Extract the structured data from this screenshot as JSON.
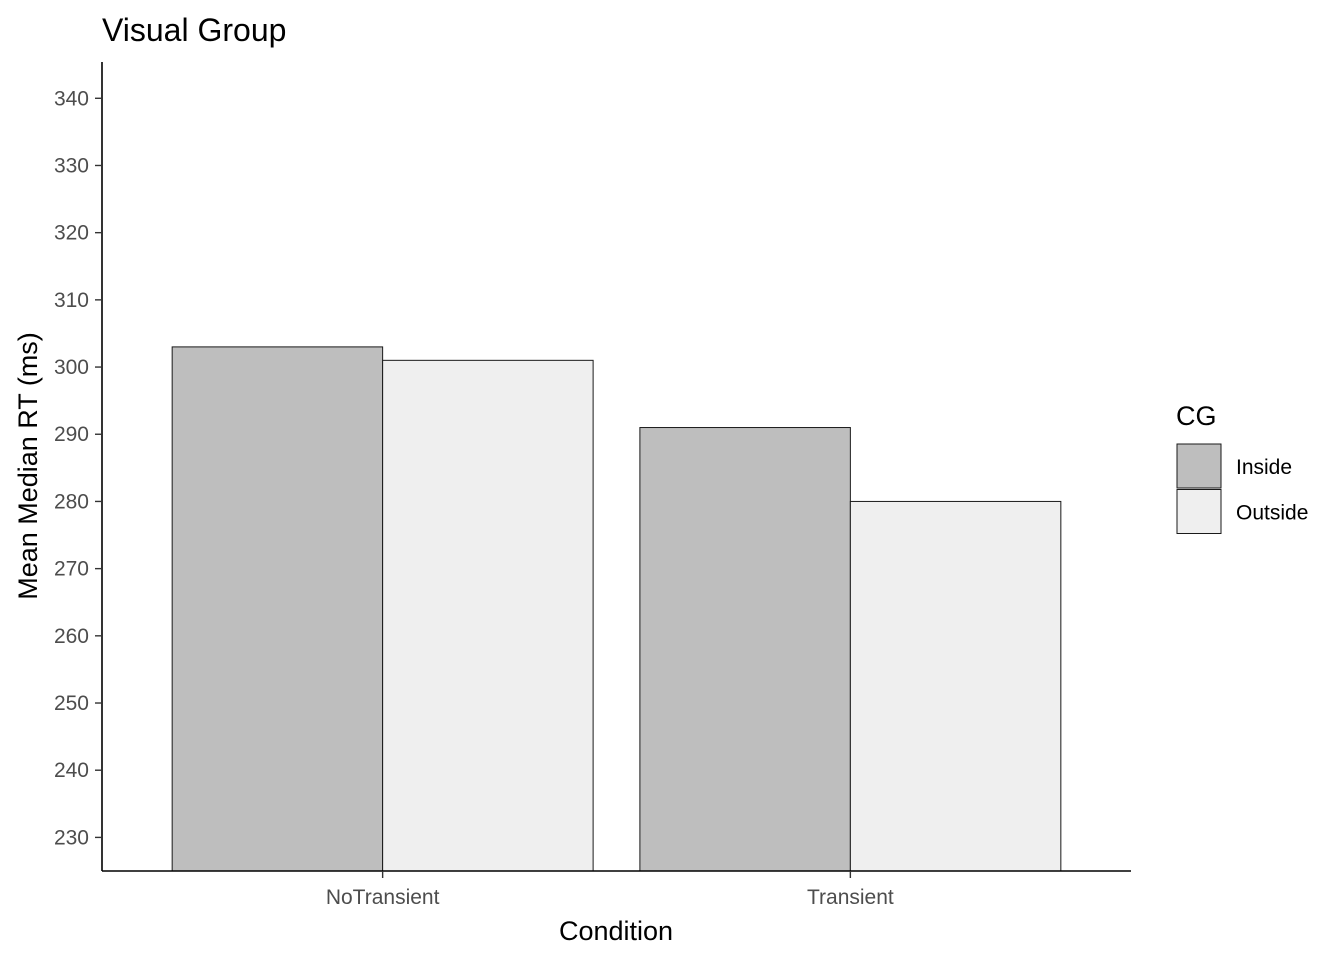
{
  "chart_data": {
    "type": "bar",
    "title": "Visual Group",
    "xlabel": "Condition",
    "ylabel": "Mean Median RT (ms)",
    "categories": [
      "NoTransient",
      "Transient"
    ],
    "series": [
      {
        "name": "Inside",
        "values": [
          303,
          291
        ],
        "color": "#bebebe"
      },
      {
        "name": "Outside",
        "values": [
          301,
          280
        ],
        "color": "#efefef"
      }
    ],
    "ylim": [
      225,
      345.4
    ],
    "yticks": [
      230,
      240,
      250,
      260,
      270,
      280,
      290,
      300,
      310,
      320,
      330,
      340
    ],
    "legend": {
      "title": "CG",
      "position": "right"
    },
    "grid": false
  }
}
